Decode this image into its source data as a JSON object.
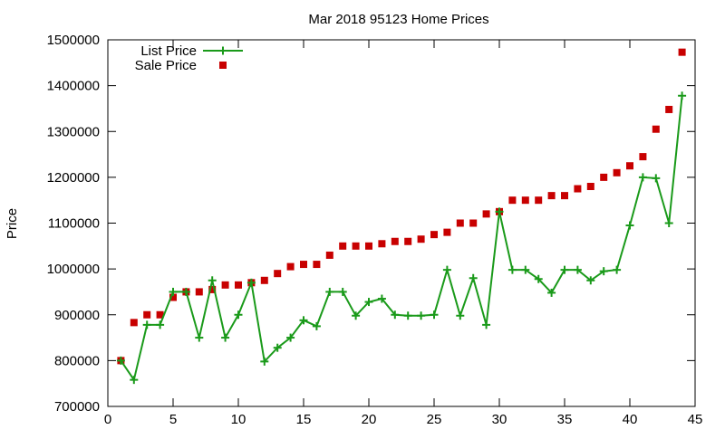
{
  "chart_data": {
    "type": "line",
    "title": "Mar 2018 95123 Home Prices",
    "xlabel": "",
    "ylabel": "Price",
    "xlim": [
      0,
      45
    ],
    "ylim": [
      700000,
      1500000
    ],
    "x_ticks": [
      0,
      5,
      10,
      15,
      20,
      25,
      30,
      35,
      40,
      45
    ],
    "y_ticks": [
      700000,
      800000,
      900000,
      1000000,
      1100000,
      1200000,
      1300000,
      1400000,
      1500000
    ],
    "grid": false,
    "legend_position": "top-left",
    "colors": {
      "list_price": "#1a9a1a",
      "sale_price": "#c80000"
    },
    "x": [
      1,
      2,
      3,
      4,
      5,
      6,
      7,
      8,
      9,
      10,
      11,
      12,
      13,
      14,
      15,
      16,
      17,
      18,
      19,
      20,
      21,
      22,
      23,
      24,
      25,
      26,
      27,
      28,
      29,
      30,
      31,
      32,
      33,
      34,
      35,
      36,
      37,
      38,
      39,
      40,
      41,
      42,
      43,
      44
    ],
    "series": [
      {
        "name": "List Price",
        "style": "line-with-plus-markers",
        "values": [
          800000,
          758000,
          878000,
          878000,
          950000,
          950000,
          850000,
          975000,
          850000,
          900000,
          970000,
          798000,
          828000,
          850000,
          888000,
          875000,
          950000,
          950000,
          898000,
          928000,
          935000,
          900000,
          898000,
          898000,
          900000,
          998000,
          898000,
          980000,
          878000,
          1125000,
          998000,
          998000,
          978000,
          948000,
          998000,
          998000,
          975000,
          995000,
          998000,
          1095000,
          1200000,
          1198000,
          1100000,
          1378000
        ]
      },
      {
        "name": "Sale Price",
        "style": "square-markers",
        "values": [
          800000,
          883000,
          900000,
          900000,
          938000,
          950000,
          950000,
          955000,
          965000,
          965000,
          970000,
          975000,
          990000,
          1005000,
          1010000,
          1010000,
          1030000,
          1050000,
          1050000,
          1050000,
          1055000,
          1060000,
          1060000,
          1065000,
          1075000,
          1080000,
          1100000,
          1100000,
          1120000,
          1125000,
          1150000,
          1150000,
          1150000,
          1160000,
          1160000,
          1175000,
          1180000,
          1200000,
          1210000,
          1225000,
          1245000,
          1305000,
          1348000,
          1473000
        ]
      }
    ]
  }
}
